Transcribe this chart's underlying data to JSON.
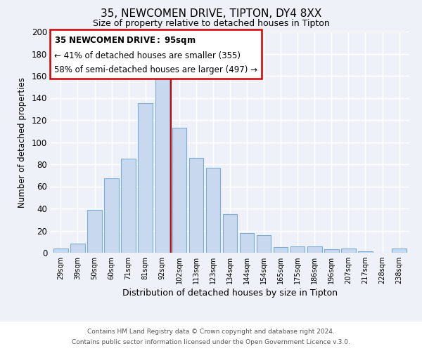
{
  "title": "35, NEWCOMEN DRIVE, TIPTON, DY4 8XX",
  "subtitle": "Size of property relative to detached houses in Tipton",
  "xlabel": "Distribution of detached houses by size in Tipton",
  "ylabel": "Number of detached properties",
  "footer_line1": "Contains HM Land Registry data © Crown copyright and database right 2024.",
  "footer_line2": "Contains public sector information licensed under the Open Government Licence v.3.0.",
  "bar_labels": [
    "29sqm",
    "39sqm",
    "50sqm",
    "60sqm",
    "71sqm",
    "81sqm",
    "92sqm",
    "102sqm",
    "113sqm",
    "123sqm",
    "134sqm",
    "144sqm",
    "154sqm",
    "165sqm",
    "175sqm",
    "186sqm",
    "196sqm",
    "207sqm",
    "217sqm",
    "228sqm",
    "238sqm"
  ],
  "bar_values": [
    4,
    8,
    39,
    67,
    85,
    135,
    160,
    113,
    86,
    77,
    35,
    18,
    16,
    5,
    6,
    6,
    3,
    4,
    1,
    0,
    4
  ],
  "bar_color": "#c8d8ee",
  "bar_edge_color": "#7aacd4",
  "vline_x": 6.5,
  "vline_color": "#cc0000",
  "annotation_title": "35 NEWCOMEN DRIVE: 95sqm",
  "annotation_line1": "← 41% of detached houses are smaller (355)",
  "annotation_line2": "58% of semi-detached houses are larger (497) →",
  "annotation_box_edge": "#cc0000",
  "ylim": [
    0,
    200
  ],
  "yticks": [
    0,
    20,
    40,
    60,
    80,
    100,
    120,
    140,
    160,
    180,
    200
  ],
  "bg_color": "#eef2f8",
  "plot_bg_color": "#eef2f8",
  "grid_color": "#d0d8e8"
}
